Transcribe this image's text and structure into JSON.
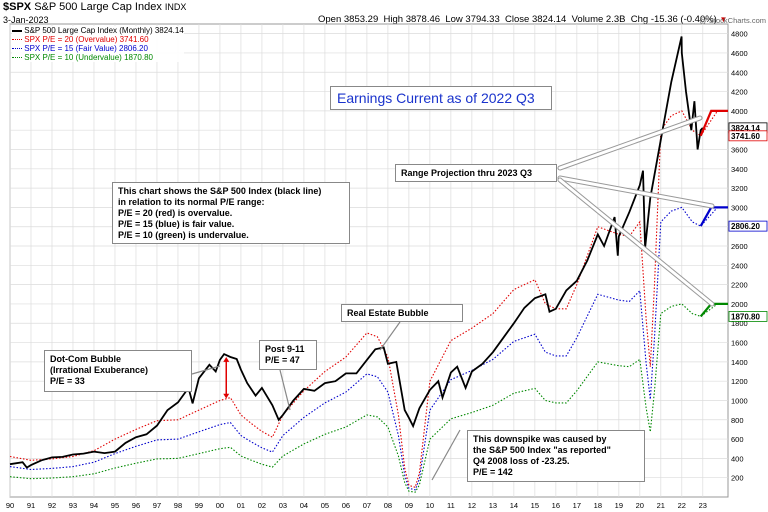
{
  "header": {
    "symbol": "$SPX",
    "name": "S&P 500 Large Cap Index",
    "exchange": "INDX",
    "date": "3-Jan-2023",
    "open_label": "Open",
    "open": "3853.29",
    "high_label": "High",
    "high": "3878.46",
    "low_label": "Low",
    "low": "3794.33",
    "close_label": "Close",
    "close": "3824.14",
    "volume_label": "Volume",
    "volume": "2.3B",
    "chg_label": "Chg",
    "chg": "-15.36 (-0.40%)",
    "watermark": "@ StockCharts.com"
  },
  "legend": [
    {
      "text": "S&P 500 Large Cap Index (Monthly) 3824.14",
      "color": "#000000"
    },
    {
      "text": "SPX P/E = 20 (Overvalue) 3741.60",
      "color": "#e00000"
    },
    {
      "text": "SPX P/E = 15 (Fair Value) 2806.20",
      "color": "#0000cc"
    },
    {
      "text": "SPX P/E = 10 (Undervalue) 1870.80",
      "color": "#008800"
    }
  ],
  "annotations": {
    "earnings_title": "Earnings Current as of 2022 Q3",
    "range_projection": "Range Projection thru 2023 Q3",
    "explanation": [
      "This chart shows the S&P 500 Index (black line)",
      "in relation to its normal P/E range:",
      "P/E = 20 (red) is overvalue.",
      "P/E = 15 (blue) is fair value.",
      "P/E = 10 (green) is undervalue."
    ],
    "dotcom": [
      "Dot-Com Bubble",
      "(Irrational Exuberance)",
      "P/E = 33"
    ],
    "post911": [
      "Post 9-11",
      "P/E = 47"
    ],
    "real_estate": "Real Estate Bubble",
    "downspike": [
      "This downspike was caused by",
      "the S&P 500 Index \"as reported\"",
      "Q4 2008 loss of -23.25.",
      "P/E = 142"
    ]
  },
  "chart_data": {
    "type": "line",
    "title": "$SPX S&P 500 Large Cap Index INDX",
    "x_tick_labels": [
      "90",
      "91",
      "92",
      "93",
      "94",
      "95",
      "96",
      "97",
      "98",
      "99",
      "00",
      "01",
      "02",
      "03",
      "04",
      "05",
      "06",
      "07",
      "08",
      "09",
      "10",
      "11",
      "12",
      "13",
      "14",
      "15",
      "16",
      "17",
      "18",
      "19",
      "20",
      "21",
      "22",
      "23"
    ],
    "y_tick_labels": [
      "200",
      "400",
      "600",
      "800",
      "1000",
      "1200",
      "1400",
      "1600",
      "1800",
      "2000",
      "2200",
      "2400",
      "2600",
      "2800",
      "3000",
      "3200",
      "3400",
      "3600",
      "3800",
      "4000",
      "4200",
      "4400",
      "4600",
      "4800"
    ],
    "ylim": [
      0,
      4900
    ],
    "xlim": [
      1990.0,
      2024.2
    ],
    "grid": true,
    "value_labels": [
      {
        "text": "3824.14",
        "value": 3824.14,
        "color": "#000000"
      },
      {
        "text": "3741.60",
        "value": 3741.6,
        "color": "#e00000"
      },
      {
        "text": "2806.20",
        "value": 2806.2,
        "color": "#0000cc"
      },
      {
        "text": "1870.80",
        "value": 1870.8,
        "color": "#008800"
      }
    ],
    "series": [
      {
        "name": "S&P 500 Large Cap Index (Monthly)",
        "color": "#000000",
        "style": "solid",
        "x": [
          1990,
          1990.6,
          1990.8,
          1991,
          1991.5,
          1992,
          1992.5,
          1993,
          1993.5,
          1994,
          1994.5,
          1995,
          1995.5,
          1996,
          1996.5,
          1997,
          1997.5,
          1998,
          1998.5,
          1998.7,
          1999,
          1999.5,
          1999.8,
          2000,
          2000.2,
          2000.5,
          2000.8,
          2001,
          2001.3,
          2001.7,
          2002,
          2002.5,
          2002.8,
          2003,
          2003.5,
          2004,
          2004.5,
          2005,
          2005.5,
          2006,
          2006.5,
          2007,
          2007.4,
          2007.8,
          2008,
          2008.4,
          2008.8,
          2009,
          2009.2,
          2009.5,
          2010,
          2010.4,
          2010.6,
          2011,
          2011.3,
          2011.7,
          2012,
          2012.5,
          2013,
          2013.5,
          2014,
          2014.5,
          2015,
          2015.5,
          2015.7,
          2016,
          2016.5,
          2017,
          2017.5,
          2018,
          2018.3,
          2018.8,
          2018.95,
          2019,
          2019.5,
          2020,
          2020.15,
          2020.25,
          2020.5,
          2021,
          2021.5,
          2021.99,
          2022,
          2022.2,
          2022.45,
          2022.6,
          2022.75,
          2022.9,
          2023
        ],
        "y": [
          340,
          360,
          305,
          330,
          380,
          410,
          415,
          440,
          450,
          470,
          455,
          470,
          560,
          620,
          650,
          740,
          900,
          980,
          1130,
          970,
          1230,
          1370,
          1300,
          1420,
          1480,
          1450,
          1430,
          1320,
          1180,
          1050,
          1130,
          950,
          800,
          850,
          1000,
          1120,
          1100,
          1180,
          1200,
          1280,
          1280,
          1420,
          1530,
          1550,
          1380,
          1400,
          900,
          820,
          735,
          920,
          1110,
          1200,
          1030,
          1290,
          1350,
          1130,
          1300,
          1380,
          1500,
          1650,
          1800,
          1960,
          2060,
          2100,
          1920,
          1950,
          2140,
          2240,
          2450,
          2720,
          2600,
          2900,
          2500,
          2700,
          2950,
          3230,
          3380,
          2580,
          3100,
          3700,
          4300,
          4770,
          4600,
          4200,
          3800,
          4100,
          3600,
          3800,
          3824.14
        ]
      },
      {
        "name": "SPX P/E = 20 (Overvalue)",
        "color": "#e00000",
        "style": "dotted",
        "x": [
          1990,
          1991,
          1992,
          1993,
          1994,
          1995,
          1996,
          1997,
          1998,
          1999,
          2000,
          2000.5,
          2001,
          2001.5,
          2002,
          2002.5,
          2003,
          2004,
          2005,
          2006,
          2007,
          2007.5,
          2008,
          2008.5,
          2008.8,
          2009,
          2009.3,
          2009.5,
          2010,
          2011,
          2012,
          2013,
          2014,
          2015,
          2015.5,
          2016,
          2016.5,
          2017,
          2018,
          2019,
          2019.5,
          2020,
          2020.3,
          2020.5,
          2020.7,
          2021,
          2021.5,
          2022,
          2022.5,
          2022.9,
          2023.7
        ],
        "y": [
          420,
          380,
          395,
          420,
          480,
          600,
          700,
          790,
          800,
          900,
          1000,
          1030,
          850,
          760,
          680,
          620,
          850,
          1100,
          1300,
          1450,
          1700,
          1660,
          1450,
          850,
          300,
          120,
          100,
          250,
          1200,
          1620,
          1750,
          1900,
          2150,
          2250,
          2000,
          1950,
          1950,
          2200,
          2800,
          2720,
          2700,
          2850,
          1850,
          1350,
          2200,
          3800,
          3950,
          4000,
          3800,
          3741.6,
          4000
        ]
      },
      {
        "name": "SPX P/E = 15 (Fair Value)",
        "color": "#0000cc",
        "style": "dotted",
        "x": [
          1990,
          1991,
          1992,
          1993,
          1994,
          1995,
          1996,
          1997,
          1998,
          1999,
          2000,
          2000.5,
          2001,
          2001.5,
          2002,
          2002.5,
          2003,
          2004,
          2005,
          2006,
          2007,
          2007.5,
          2008,
          2008.5,
          2008.8,
          2009,
          2009.3,
          2009.5,
          2010,
          2011,
          2012,
          2013,
          2014,
          2015,
          2015.5,
          2016,
          2016.5,
          2017,
          2018,
          2019,
          2019.5,
          2020,
          2020.3,
          2020.5,
          2020.7,
          2021,
          2021.5,
          2022,
          2022.5,
          2022.9,
          2023.7
        ],
        "y": [
          315,
          285,
          296,
          315,
          360,
          450,
          525,
          592,
          600,
          675,
          750,
          772,
          637,
          570,
          510,
          465,
          637,
          825,
          975,
          1087,
          1275,
          1245,
          1087,
          637,
          225,
          90,
          75,
          187,
          900,
          1215,
          1312,
          1425,
          1612,
          1687,
          1500,
          1462,
          1462,
          1650,
          2100,
          2040,
          2025,
          2137,
          1387,
          1012,
          1650,
          2850,
          2962,
          3000,
          2850,
          2806.2,
          3000
        ]
      },
      {
        "name": "SPX P/E = 10 (Undervalue)",
        "color": "#008800",
        "style": "dotted",
        "x": [
          1990,
          1991,
          1992,
          1993,
          1994,
          1995,
          1996,
          1997,
          1998,
          1999,
          2000,
          2000.5,
          2001,
          2001.5,
          2002,
          2002.5,
          2003,
          2004,
          2005,
          2006,
          2007,
          2007.5,
          2008,
          2008.5,
          2008.8,
          2009,
          2009.3,
          2009.5,
          2010,
          2011,
          2012,
          2013,
          2014,
          2015,
          2015.5,
          2016,
          2016.5,
          2017,
          2018,
          2019,
          2019.5,
          2020,
          2020.3,
          2020.5,
          2020.7,
          2021,
          2021.5,
          2022,
          2022.5,
          2022.9,
          2023.7
        ],
        "y": [
          210,
          190,
          197,
          210,
          240,
          300,
          350,
          395,
          400,
          450,
          500,
          515,
          425,
          380,
          340,
          310,
          425,
          550,
          650,
          725,
          850,
          830,
          725,
          425,
          150,
          60,
          50,
          125,
          600,
          810,
          875,
          950,
          1075,
          1125,
          1000,
          975,
          975,
          1100,
          1400,
          1360,
          1350,
          1425,
          925,
          675,
          1100,
          1900,
          1975,
          2000,
          1900,
          1870.8,
          2000
        ]
      }
    ]
  }
}
